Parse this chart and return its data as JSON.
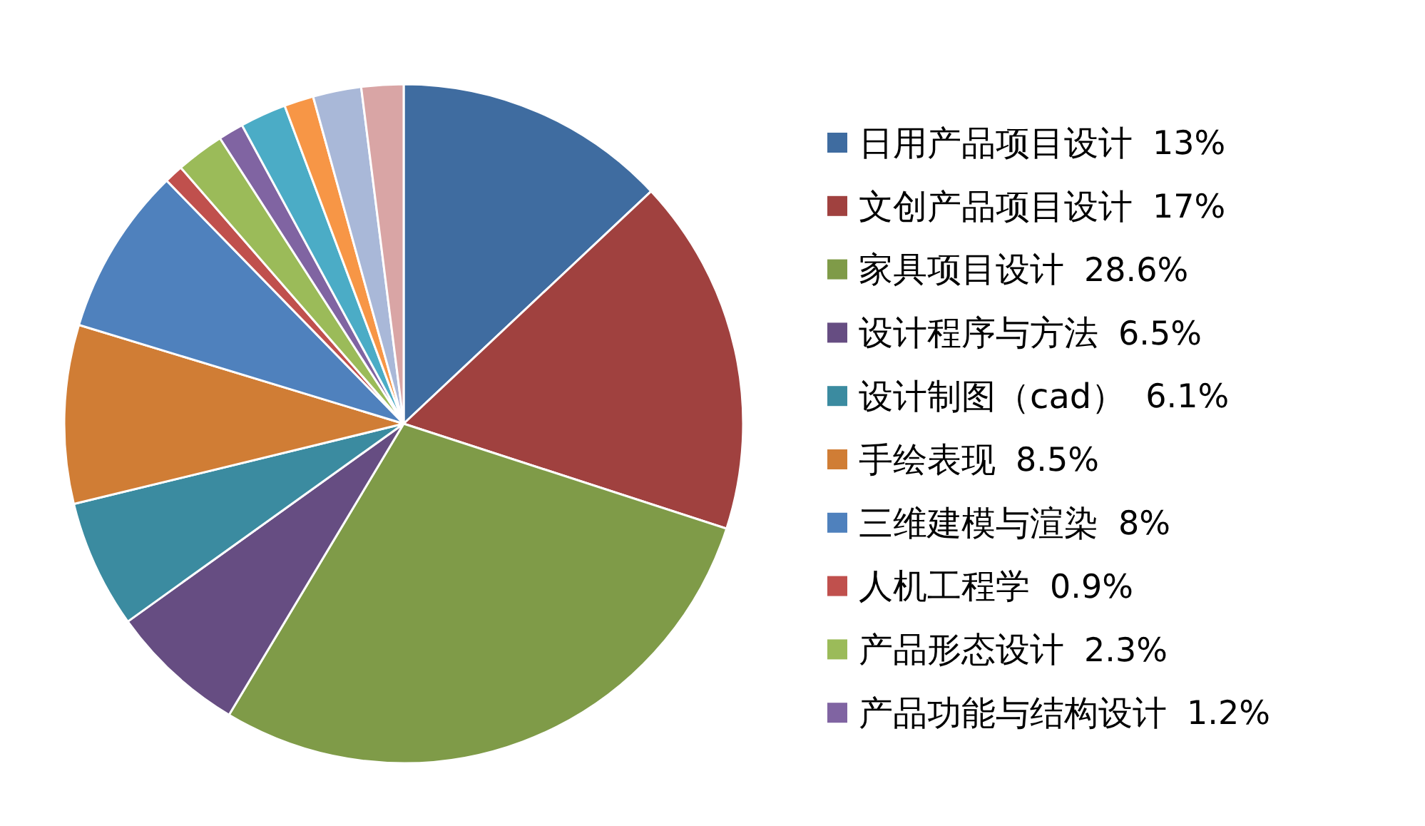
{
  "chart_data": {
    "type": "pie",
    "categories": [
      "日用产品项目设计",
      "文创产品项目设计",
      "家具项目设计",
      "设计程序与方法",
      "设计制图（cad）",
      "手绘表现",
      "三维建模与渲染",
      "人机工程学",
      "产品形态设计",
      "产品功能与结构设计",
      null,
      null,
      null,
      null
    ],
    "values": [
      13,
      17,
      28.6,
      6.5,
      6.1,
      8.5,
      8,
      0.9,
      2.3,
      1.2,
      2.2,
      1.4,
      2.3,
      2
    ],
    "value_labels": [
      "13%",
      "17%",
      "28.6%",
      "6.5%",
      "6.1%",
      "8.5%",
      "8%",
      "0.9%",
      "2.3%",
      "1.2%",
      null,
      null,
      null,
      null
    ],
    "colors": [
      "#3f6ca0",
      "#a0413f",
      "#7f9b48",
      "#664d82",
      "#3b8ba0",
      "#d07d35",
      "#4f81bd",
      "#c0504d",
      "#9bbb59",
      "#8064a2",
      "#4bacc6",
      "#f79646",
      "#a9b8d8",
      "#d9a5a5"
    ],
    "legend": "right"
  }
}
